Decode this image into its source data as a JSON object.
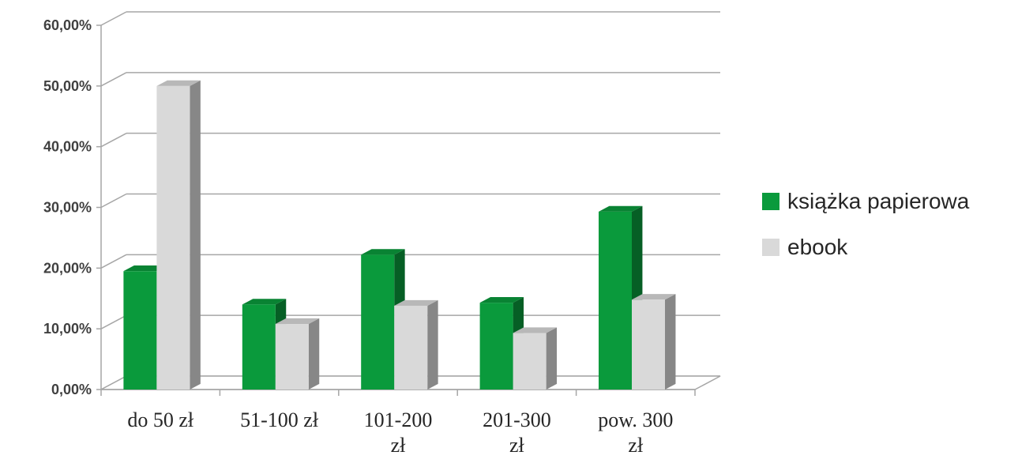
{
  "chart_data": {
    "type": "bar",
    "categories": [
      [
        "do 50 zł"
      ],
      [
        "51-100 zł"
      ],
      [
        "101-200",
        "zł"
      ],
      [
        "201-300",
        "zł"
      ],
      [
        "pow. 300",
        "zł"
      ]
    ],
    "series": [
      {
        "name": "książka papierowa",
        "color": "#0a9a3c",
        "values": [
          19.5,
          14.0,
          22.2,
          14.3,
          29.3
        ]
      },
      {
        "name": "ebook",
        "color": "#d9d9d9",
        "values": [
          50.0,
          10.8,
          13.8,
          9.3,
          14.8
        ]
      }
    ],
    "yticks": [
      "0,00%",
      "10,00%",
      "20,00%",
      "30,00%",
      "40,00%",
      "50,00%",
      "60,00%"
    ],
    "ylim": [
      0,
      60
    ],
    "grid": true,
    "legend_position": "right",
    "title": "",
    "xlabel": "",
    "ylabel": ""
  }
}
